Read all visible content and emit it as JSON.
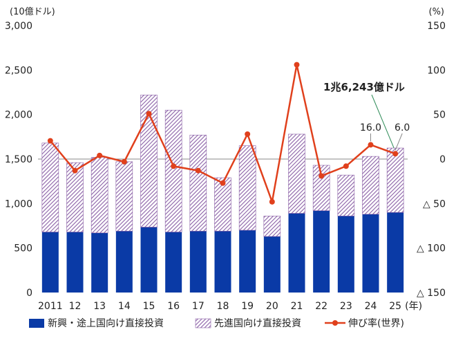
{
  "chart_data": {
    "type": "bar",
    "stacked": true,
    "categories": [
      "2011",
      "12",
      "13",
      "14",
      "15",
      "16",
      "17",
      "18",
      "19",
      "20",
      "21",
      "22",
      "23",
      "24",
      "25"
    ],
    "x_unit_label": "(年)",
    "left_axis": {
      "unit_label": "(10億ドル)",
      "ylim": [
        0,
        3000
      ],
      "ticks": [
        0,
        500,
        1000,
        1500,
        2000,
        2500,
        3000
      ],
      "tick_labels": [
        "0",
        "500",
        "1,000",
        "1,500",
        "2,000",
        "2,500",
        "3,000"
      ]
    },
    "right_axis": {
      "unit_label": "(%)",
      "ylim": [
        -150,
        150
      ],
      "ticks": [
        150,
        100,
        50,
        0,
        -50,
        -100,
        -150
      ],
      "tick_labels": [
        "150",
        "100",
        "50",
        "0",
        "△ 50",
        "△ 100",
        "△ 150"
      ]
    },
    "series": [
      {
        "name": "新興・途上国向け直接投資",
        "type": "bar",
        "axis": "left",
        "color": "#0a3aa6",
        "values": [
          680,
          680,
          670,
          690,
          735,
          680,
          690,
          690,
          700,
          630,
          890,
          920,
          860,
          880,
          900
        ]
      },
      {
        "name": "先進国向け直接投資",
        "type": "bar",
        "axis": "left",
        "pattern": "diagonal-hatch",
        "color": "#8a5fa6",
        "values": [
          1000,
          780,
          850,
          780,
          1485,
          1370,
          1080,
          600,
          950,
          230,
          890,
          510,
          460,
          650,
          724
        ]
      },
      {
        "name": "伸び率(世界)",
        "type": "line",
        "axis": "right",
        "color": "#e0401c",
        "values": [
          20.5,
          -13,
          4,
          -3,
          51,
          -8,
          -13,
          -27,
          28,
          -48,
          106,
          -19,
          -8,
          16.0,
          6.0
        ]
      }
    ],
    "data_labels": [
      {
        "category": "24",
        "text": "16.0"
      },
      {
        "category": "25",
        "text": "6.0"
      }
    ],
    "annotation": {
      "category": "25",
      "text": "1兆6,243億ドル"
    },
    "legend_placement": "bottom",
    "grid": false
  }
}
